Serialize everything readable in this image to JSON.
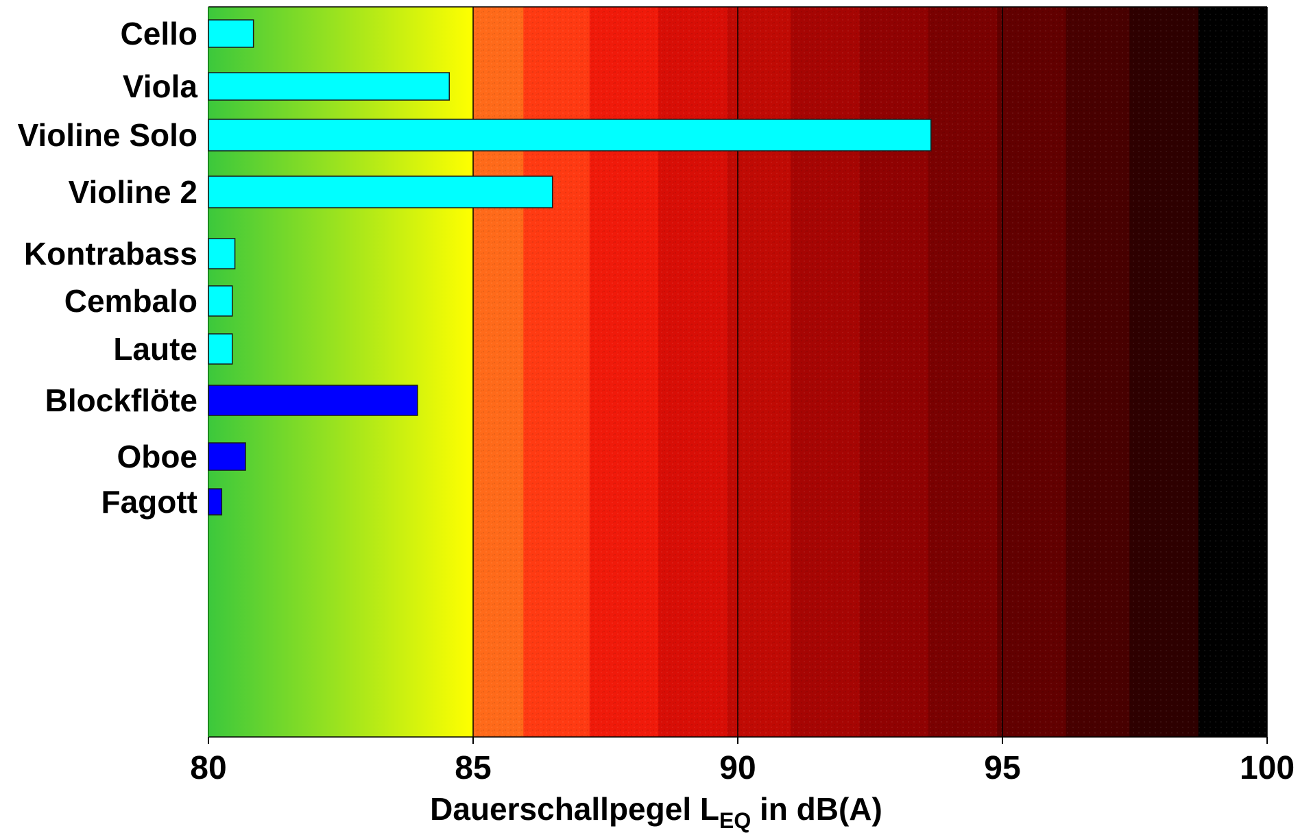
{
  "chart_data": {
    "type": "bar",
    "orientation": "horizontal",
    "categories": [
      "Cello",
      "Viola",
      "Violine Solo",
      "Violine 2",
      "Kontrabass",
      "Cembalo",
      "Laute",
      "Blockflöte",
      "Oboe",
      "Fagott"
    ],
    "values": [
      80.85,
      84.55,
      93.65,
      86.5,
      80.5,
      80.45,
      80.45,
      83.95,
      80.7,
      80.25
    ],
    "bar_colors": [
      "#00ffff",
      "#00ffff",
      "#00ffff",
      "#00ffff",
      "#00ffff",
      "#00ffff",
      "#00ffff",
      "#0000ff",
      "#0000ff",
      "#0000ff"
    ],
    "xlabel_main": "Dauerschallpegel L",
    "xlabel_sub": "EQ",
    "xlabel_tail": " in dB(A)",
    "xlim": [
      80,
      100
    ],
    "xticks": [
      "80",
      "85",
      "90",
      "95",
      "100"
    ],
    "background_gradient": [
      "#2ecc40",
      "#ffff00",
      "#ff3300",
      "#8b0000",
      "#000000"
    ],
    "grid": true
  }
}
